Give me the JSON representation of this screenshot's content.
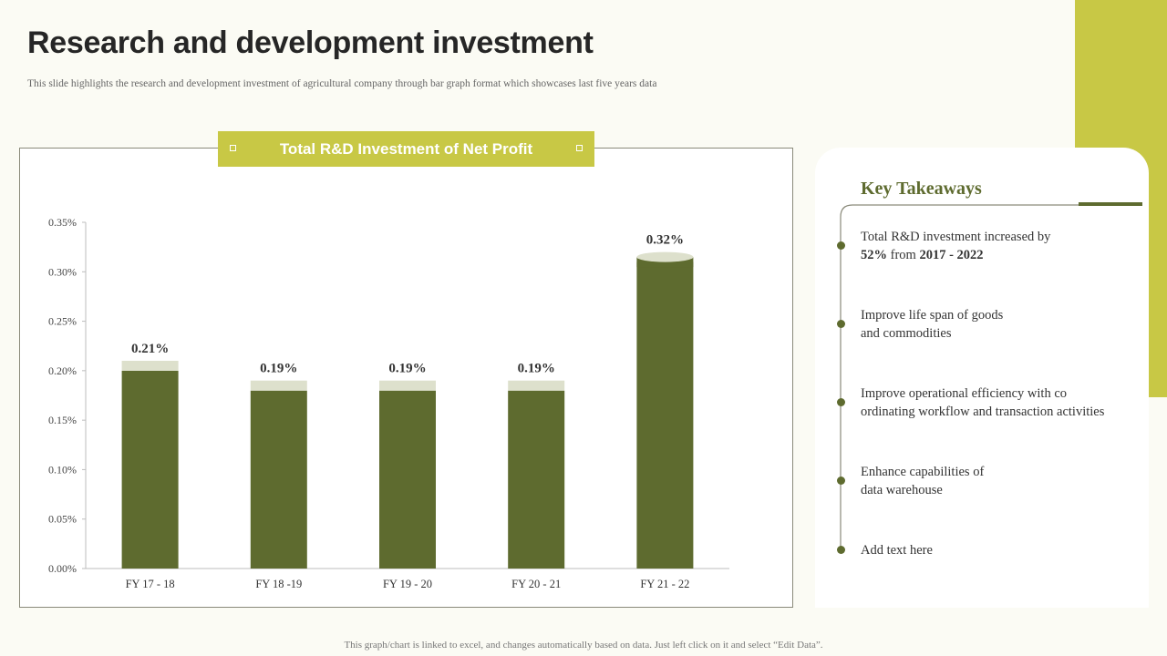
{
  "slide": {
    "title": "Research and development investment",
    "subtitle": "This slide highlights the research and development investment of agricultural company through bar graph format which showcases last five years data",
    "footer": "This graph/chart is linked to excel,  and changes  automatically based on data. Just left click on it and select “Edit Data”."
  },
  "colors": {
    "accent": "#c8c845",
    "bar": "#5e6b2f",
    "bar_cap": "#dde0cc"
  },
  "chart_header": {
    "label": "Total R&D Investment of Net Profit"
  },
  "chart_data": {
    "type": "bar",
    "title": "Total R&D Investment of Net Profit",
    "categories": [
      "FY 17 - 18",
      "FY 18 -19",
      "FY 19 - 20",
      "FY 20 - 21",
      "FY 21 - 22"
    ],
    "values": [
      0.21,
      0.19,
      0.19,
      0.19,
      0.32
    ],
    "data_labels": [
      "0.21%",
      "0.19%",
      "0.19%",
      "0.19%",
      "0.32%"
    ],
    "ylim": [
      0,
      0.35
    ],
    "yticks": [
      0,
      0.05,
      0.1,
      0.15,
      0.2,
      0.25,
      0.3,
      0.35
    ],
    "ytick_labels": [
      "0.00%",
      "0.05%",
      "0.10%",
      "0.15%",
      "0.20%",
      "0.25%",
      "0.30%",
      "0.35%"
    ],
    "xlabel": "",
    "ylabel": "",
    "grid": false,
    "legend": "none"
  },
  "takeaways": {
    "title": "Key  Takeaways",
    "items": [
      {
        "plain": "Total R&D investment  increased  by",
        "bold_a": "52%",
        "mid": " from ",
        "bold_b": "2017 - 2022"
      },
      {
        "text": "Improve life  span of goods\nand commodities"
      },
      {
        "text": "Improve operational  efficiency  with co\nordinating  workflow  and transaction  activities"
      },
      {
        "text": "Enhance capabilities  of\ndata warehouse"
      },
      {
        "text": "Add text here"
      }
    ]
  }
}
